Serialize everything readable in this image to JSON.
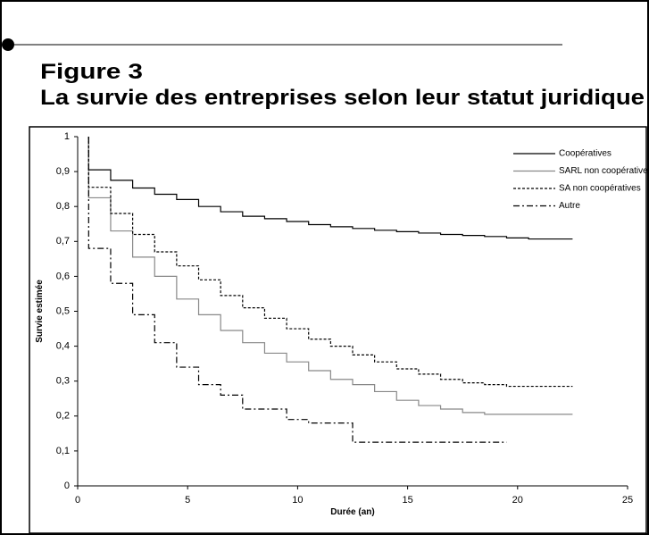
{
  "header": {
    "figure": "Figure 3",
    "title": "La survie des entreprises selon leur statut juridique"
  },
  "chart_data": {
    "type": "step-line",
    "xlabel": "Durée (an)",
    "ylabel": "Survie estimée",
    "xlim": [
      0,
      25
    ],
    "xticks": [
      0,
      5,
      10,
      15,
      20,
      25
    ],
    "ylim": [
      0,
      1
    ],
    "yticks": [
      0,
      {
        "value": 0.1,
        "label": "0,1"
      },
      {
        "value": 0.2,
        "label": "0,2"
      },
      {
        "value": 0.3,
        "label": "0,3"
      },
      {
        "value": 0.4,
        "label": "0,4"
      },
      {
        "value": 0.5,
        "label": "0,5"
      },
      {
        "value": 0.6,
        "label": "0,6"
      },
      {
        "value": 0.7,
        "label": "0,7"
      },
      {
        "value": 0.8,
        "label": "0,8"
      },
      {
        "value": 0.9,
        "label": "0,9"
      },
      1
    ],
    "legend": "upper right",
    "series": [
      {
        "name": "Coopératives",
        "color": "#000000",
        "dash": "solid",
        "x": [
          0.5,
          0.5,
          1.5,
          2.5,
          3.5,
          4.5,
          5.5,
          6.5,
          7.5,
          8.5,
          9.5,
          10.5,
          11.5,
          12.5,
          13.5,
          14.5,
          15.5,
          16.5,
          17.5,
          18.5,
          19.5,
          20.5,
          22.5
        ],
        "values": [
          1,
          0.905,
          0.875,
          0.853,
          0.835,
          0.82,
          0.8,
          0.785,
          0.772,
          0.765,
          0.757,
          0.748,
          0.742,
          0.737,
          0.732,
          0.728,
          0.724,
          0.72,
          0.717,
          0.714,
          0.71,
          0.707,
          0.707
        ]
      },
      {
        "name": "SARL non coopératives",
        "color": "#888888",
        "dash": "solid",
        "x": [
          0.5,
          0.5,
          1.5,
          2.5,
          3.5,
          4.5,
          5.5,
          6.5,
          7.5,
          8.5,
          9.5,
          10.5,
          11.5,
          12.5,
          13.5,
          14.5,
          15.5,
          16.5,
          17.5,
          18.5,
          22.5
        ],
        "values": [
          1,
          0.825,
          0.73,
          0.655,
          0.6,
          0.535,
          0.49,
          0.445,
          0.41,
          0.38,
          0.355,
          0.33,
          0.305,
          0.29,
          0.27,
          0.245,
          0.23,
          0.22,
          0.21,
          0.205,
          0.205
        ]
      },
      {
        "name": "SA non coopératives",
        "color": "#000000",
        "dash": "dotted",
        "x": [
          0.5,
          0.5,
          1.5,
          2.5,
          3.5,
          4.5,
          5.5,
          6.5,
          7.5,
          8.5,
          9.5,
          10.5,
          11.5,
          12.5,
          13.5,
          14.5,
          15.5,
          16.5,
          17.5,
          18.5,
          19.5,
          22.5
        ],
        "values": [
          1,
          0.855,
          0.78,
          0.72,
          0.67,
          0.63,
          0.59,
          0.545,
          0.51,
          0.48,
          0.45,
          0.42,
          0.4,
          0.375,
          0.355,
          0.335,
          0.32,
          0.305,
          0.295,
          0.29,
          0.285,
          0.285
        ]
      },
      {
        "name": "Autre",
        "color": "#000000",
        "dash": "dashdot",
        "x": [
          0.5,
          0.5,
          1.5,
          2.5,
          3.5,
          4.5,
          5.5,
          6.5,
          7.5,
          9.5,
          10.5,
          12.5,
          19.5
        ],
        "values": [
          1,
          0.68,
          0.58,
          0.49,
          0.41,
          0.34,
          0.29,
          0.26,
          0.22,
          0.19,
          0.18,
          0.125,
          0.125
        ]
      }
    ]
  }
}
